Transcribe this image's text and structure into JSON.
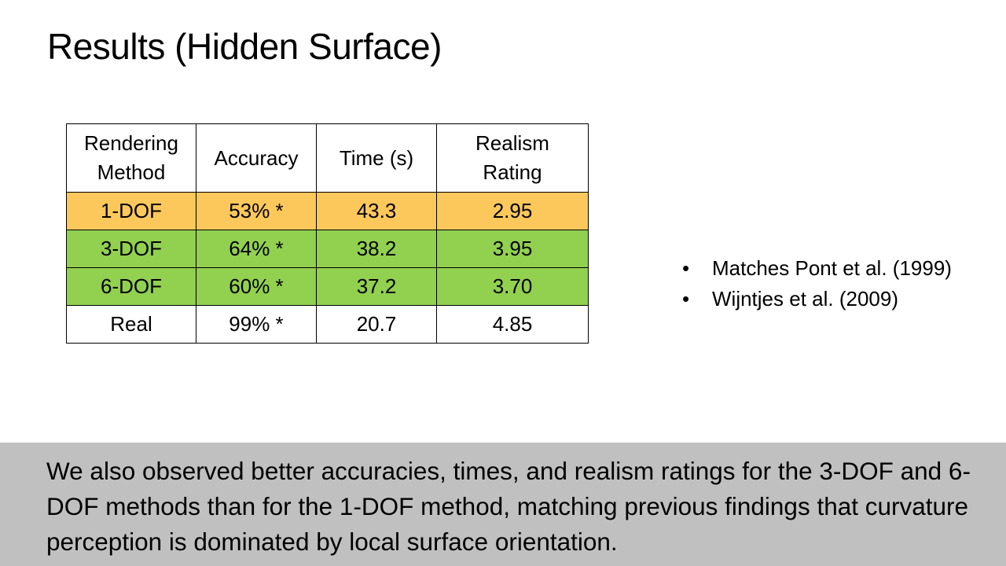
{
  "slide": {
    "title": "Results (Hidden Surface)"
  },
  "table": {
    "headers": [
      "Rendering Method",
      "Accuracy",
      "Time (s)",
      "Realism Rating"
    ],
    "rows": [
      {
        "method": "1-DOF",
        "accuracy": "53% *",
        "time": "43.3",
        "realism": "2.95",
        "color": "#fdc85b"
      },
      {
        "method": "3-DOF",
        "accuracy": "64% *",
        "time": "38.2",
        "realism": "3.95",
        "color": "#92d050"
      },
      {
        "method": "6-DOF",
        "accuracy": "60% *",
        "time": "37.2",
        "realism": "3.70",
        "color": "#92d050"
      },
      {
        "method": "Real",
        "accuracy": "99% *",
        "time": "20.7",
        "realism": "4.85",
        "color": "#ffffff"
      }
    ]
  },
  "bullets": {
    "marker": "•",
    "items": [
      "Matches Pont et al. (1999)",
      "Wijntjes et al. (2009)"
    ]
  },
  "caption": {
    "text": "We also observed better accuracies, times, and realism ratings for the 3-DOF and 6-DOF methods than for the 1-DOF method, matching previous findings that curvature perception is dominated by local surface orientation."
  }
}
